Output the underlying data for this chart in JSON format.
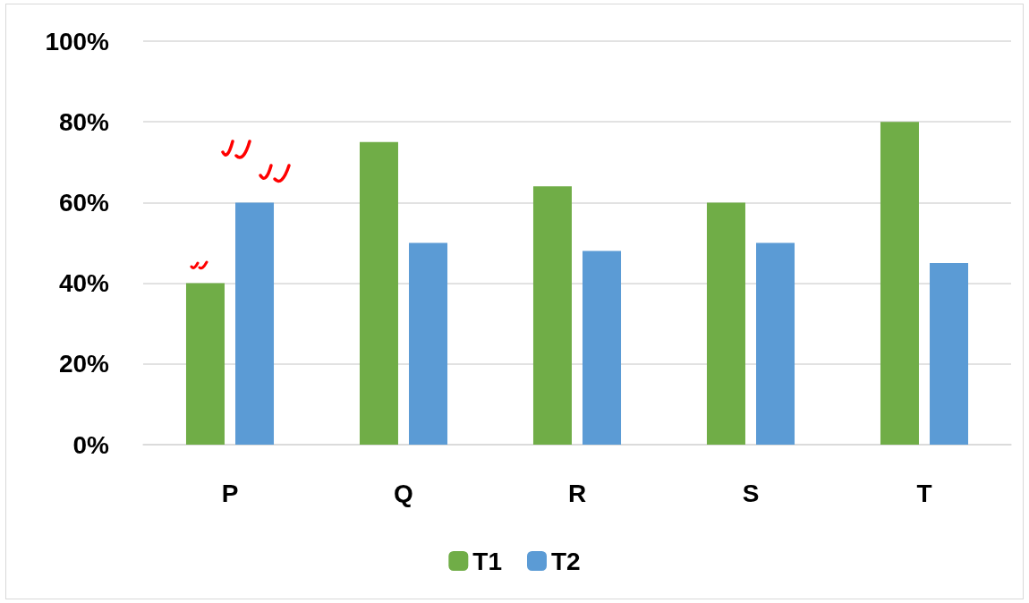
{
  "chart_data": {
    "type": "bar",
    "categories": [
      "P",
      "Q",
      "R",
      "S",
      "T"
    ],
    "series": [
      {
        "name": "T1",
        "color": "#70ad47",
        "values": [
          40,
          75,
          64,
          60,
          80
        ]
      },
      {
        "name": "T2",
        "color": "#5b9bd5",
        "values": [
          60,
          50,
          48,
          50,
          45
        ]
      }
    ],
    "ylim": [
      0,
      100
    ],
    "yticks": [
      {
        "value": 0,
        "label": "0%"
      },
      {
        "value": 20,
        "label": "20%"
      },
      {
        "value": 40,
        "label": "40%"
      },
      {
        "value": 60,
        "label": "60%"
      },
      {
        "value": 80,
        "label": "80%"
      },
      {
        "value": 100,
        "label": "100%"
      }
    ],
    "grid": "y",
    "legend": "bottom"
  }
}
